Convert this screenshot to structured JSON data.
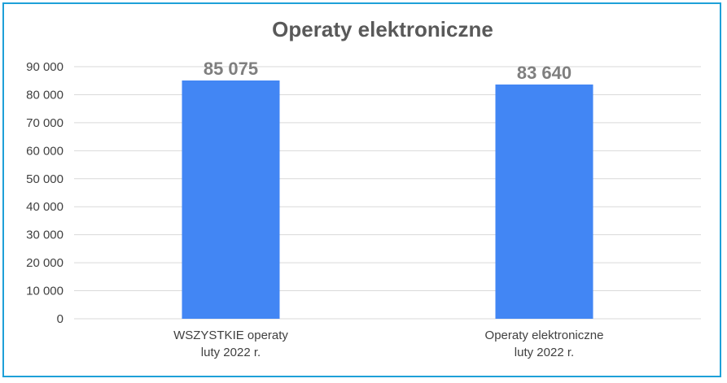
{
  "chart_data": {
    "type": "bar",
    "title": "Operaty elektroniczne",
    "categories": [
      [
        "WSZYSTKIE operaty",
        "luty 2022 r."
      ],
      [
        "Operaty elektroniczne",
        "luty 2022 r."
      ]
    ],
    "values": [
      85075,
      83640
    ],
    "data_labels": [
      "85 075",
      "83 640"
    ],
    "ylim": [
      0,
      90000
    ],
    "yticks": [
      0,
      10000,
      20000,
      30000,
      40000,
      50000,
      60000,
      70000,
      80000,
      90000
    ],
    "ytick_labels": [
      "0",
      "10 000",
      "20 000",
      "30 000",
      "40 000",
      "50 000",
      "60 000",
      "70 000",
      "80 000",
      "90 000"
    ],
    "xlabel": "",
    "ylabel": "",
    "grid": true,
    "legend": "none"
  },
  "colors": {
    "bar": "#4286f4",
    "frame": "#1ea0d8",
    "grid": "#d9d9d9",
    "title": "#595959",
    "tick": "#404040",
    "data_label": "#7f7f7f"
  }
}
